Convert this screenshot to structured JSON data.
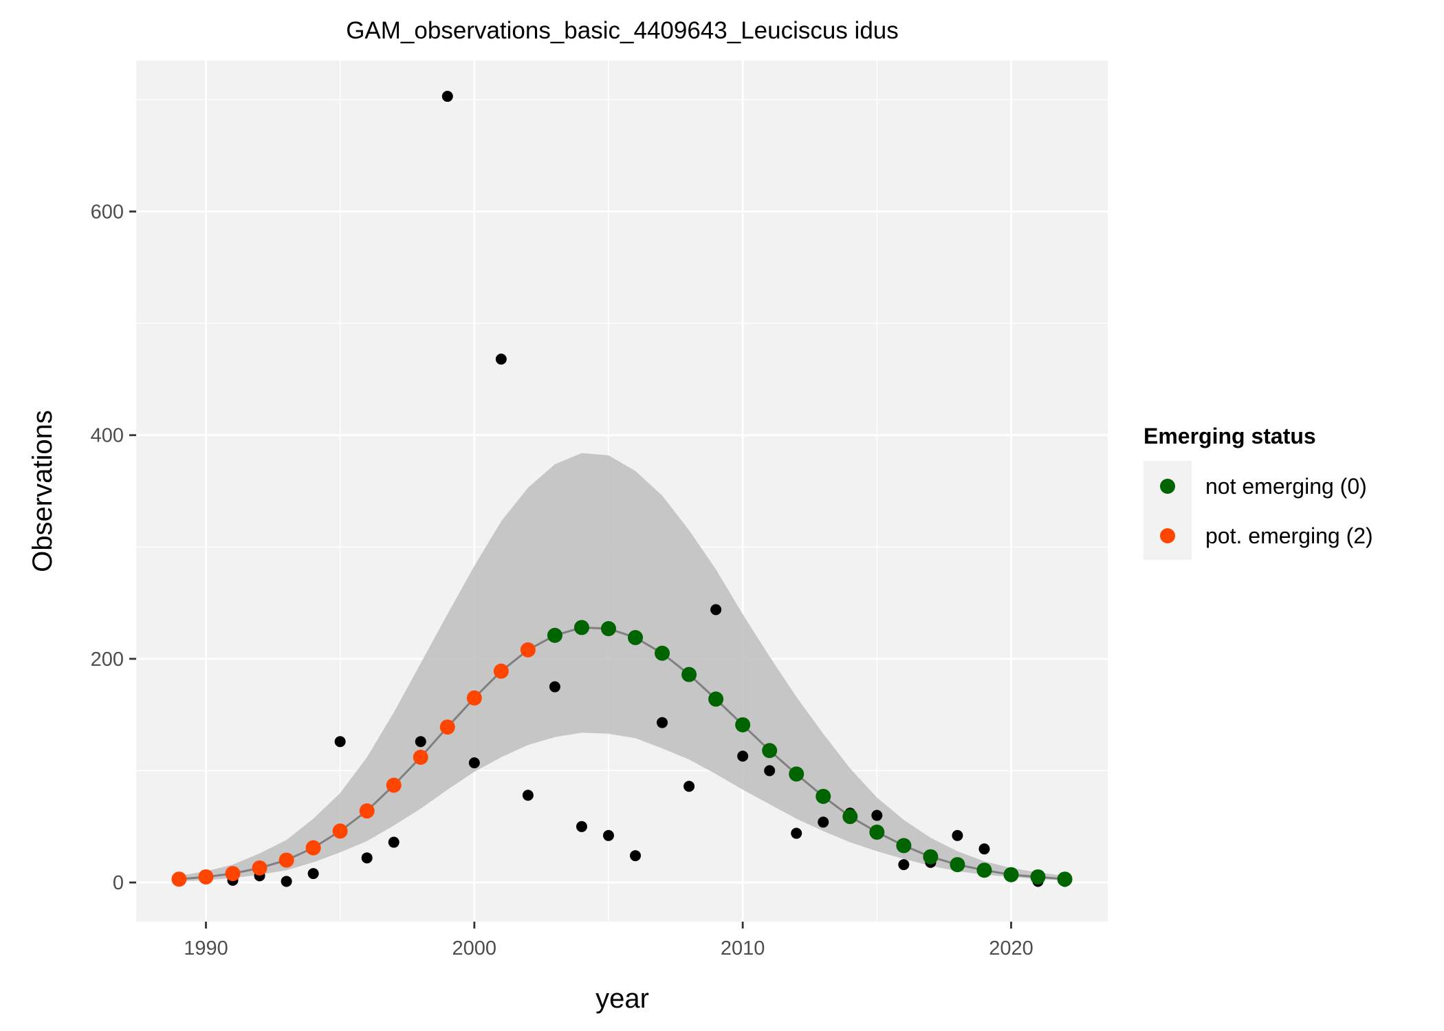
{
  "chart_data": {
    "type": "scatter",
    "title": "GAM_observations_basic_4409643_Leuciscus idus",
    "xlabel": "year",
    "ylabel": "Observations",
    "xlim": [
      1987.4,
      2023.6
    ],
    "ylim": [
      -35,
      735
    ],
    "x_ticks": [
      1990,
      2000,
      2010,
      2020
    ],
    "x_tick_labels": [
      "1990",
      "2000",
      "2010",
      "2020"
    ],
    "y_ticks": [
      0,
      200,
      400,
      600
    ],
    "y_tick_labels": [
      "0",
      "200",
      "400",
      "600"
    ],
    "grid": true,
    "legend": {
      "title": "Emerging status",
      "placement": "right",
      "entries": [
        {
          "label": "not emerging (0)",
          "color": "#006400"
        },
        {
          "label": "pot. emerging (2)",
          "color": "#ff4500"
        }
      ]
    },
    "colors": {
      "panel_background": "#f2f2f2",
      "grid": "#ffffff",
      "ribbon": "#bebebe",
      "fit_line": "#7f7f7f",
      "observed_points": "#000000",
      "not_emerging": "#006400",
      "pot_emerging": "#ff4500"
    },
    "observed_points": {
      "x": [
        1989,
        1990,
        1991,
        1992,
        1993,
        1994,
        1995,
        1996,
        1997,
        1998,
        1999,
        2000,
        2001,
        2002,
        2003,
        2004,
        2005,
        2006,
        2007,
        2008,
        2009,
        2010,
        2011,
        2012,
        2013,
        2014,
        2015,
        2016,
        2017,
        2018,
        2019,
        2020,
        2021,
        2022
      ],
      "y": [
        2,
        5,
        2,
        6,
        1,
        8,
        126,
        22,
        36,
        126,
        703,
        107,
        468,
        78,
        175,
        50,
        42,
        24,
        143,
        86,
        244,
        113,
        100,
        44,
        54,
        62,
        60,
        16,
        18,
        42,
        30,
        8,
        1,
        1
      ]
    },
    "fitted": {
      "x": [
        1989,
        1990,
        1991,
        1992,
        1993,
        1994,
        1995,
        1996,
        1997,
        1998,
        1999,
        2000,
        2001,
        2002,
        2003,
        2004,
        2005,
        2006,
        2007,
        2008,
        2009,
        2010,
        2011,
        2012,
        2013,
        2014,
        2015,
        2016,
        2017,
        2018,
        2019,
        2020,
        2021,
        2022
      ],
      "y": [
        3,
        5,
        8,
        13,
        20,
        31,
        46,
        64,
        87,
        112,
        139,
        165,
        189,
        208,
        221,
        228,
        227,
        219,
        205,
        186,
        164,
        141,
        118,
        97,
        77,
        59,
        45,
        33,
        23,
        16,
        11,
        7,
        5,
        3
      ],
      "lower": [
        1,
        2,
        4,
        7,
        11,
        18,
        27,
        37,
        51,
        66,
        83,
        99,
        112,
        123,
        130,
        134,
        133,
        129,
        120,
        110,
        97,
        83,
        70,
        57,
        46,
        36,
        28,
        21,
        15,
        10,
        7,
        5,
        3,
        2
      ],
      "upper": [
        6,
        10,
        16,
        26,
        38,
        57,
        80,
        112,
        152,
        196,
        240,
        283,
        323,
        353,
        374,
        384,
        382,
        368,
        346,
        315,
        280,
        240,
        202,
        166,
        133,
        102,
        76,
        56,
        40,
        28,
        19,
        13,
        9,
        6
      ],
      "status": [
        "pot. emerging (2)",
        "pot. emerging (2)",
        "pot. emerging (2)",
        "pot. emerging (2)",
        "pot. emerging (2)",
        "pot. emerging (2)",
        "pot. emerging (2)",
        "pot. emerging (2)",
        "pot. emerging (2)",
        "pot. emerging (2)",
        "pot. emerging (2)",
        "pot. emerging (2)",
        "pot. emerging (2)",
        "pot. emerging (2)",
        "not emerging (0)",
        "not emerging (0)",
        "not emerging (0)",
        "not emerging (0)",
        "not emerging (0)",
        "not emerging (0)",
        "not emerging (0)",
        "not emerging (0)",
        "not emerging (0)",
        "not emerging (0)",
        "not emerging (0)",
        "not emerging (0)",
        "not emerging (0)",
        "not emerging (0)",
        "not emerging (0)",
        "not emerging (0)",
        "not emerging (0)",
        "not emerging (0)",
        "not emerging (0)",
        "not emerging (0)"
      ]
    }
  }
}
